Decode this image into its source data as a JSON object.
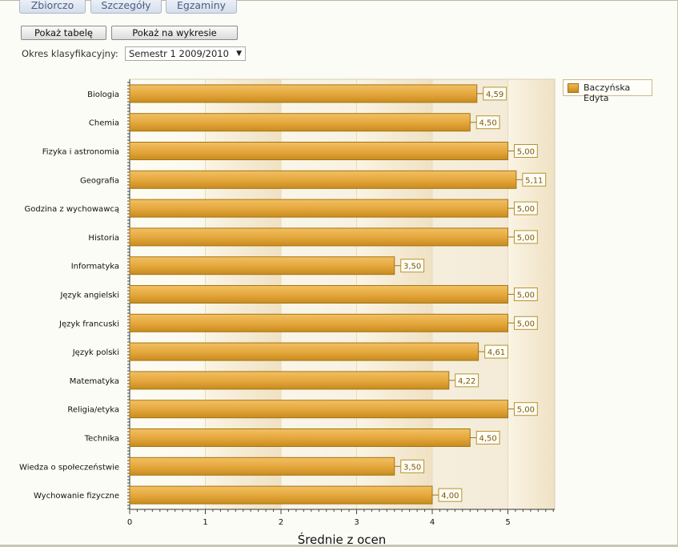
{
  "tabs": [
    {
      "label": "Zbiorczo"
    },
    {
      "label": "Szczegóły"
    },
    {
      "label": "Egzaminy"
    }
  ],
  "buttons": {
    "show_table": "Pokaż tabelę",
    "show_chart": "Pokaż na wykresie"
  },
  "period": {
    "label": "Okres klasyfikacyjny:",
    "selected": "Semestr 1 2009/2010"
  },
  "legend": {
    "entries": [
      "Baczyńska Edyta"
    ]
  },
  "colors": {
    "bar": "#e0a53a",
    "bar_border": "#a27613",
    "background": "#fcfcf6"
  },
  "chart_data": {
    "type": "bar",
    "orientation": "horizontal",
    "categories": [
      "Biologia",
      "Chemia",
      "Fizyka i astronomia",
      "Geografia",
      "Godzina z wychowawcą",
      "Historia",
      "Informatyka",
      "Język angielski",
      "Język francuski",
      "Język polski",
      "Matematyka",
      "Religia/etyka",
      "Technika",
      "Wiedza o społeczeństwie",
      "Wychowanie fizyczne"
    ],
    "series": [
      {
        "name": "Baczyńska Edyta",
        "values": [
          4.59,
          4.5,
          5.0,
          5.11,
          5.0,
          5.0,
          3.5,
          5.0,
          5.0,
          4.61,
          4.22,
          5.0,
          4.5,
          3.5,
          4.0
        ]
      }
    ],
    "value_labels": [
      "4,59",
      "4,50",
      "5,00",
      "5,11",
      "5,00",
      "5,00",
      "3,50",
      "5,00",
      "5,00",
      "4,61",
      "4,22",
      "5,00",
      "4,50",
      "3,50",
      "4,00"
    ],
    "xlabel": "Średnie z ocen",
    "ylabel": "",
    "xlim": [
      0,
      5.6
    ],
    "xticks": [
      "0",
      "1",
      "2",
      "3",
      "4",
      "5"
    ],
    "legend_position": "top-right"
  }
}
